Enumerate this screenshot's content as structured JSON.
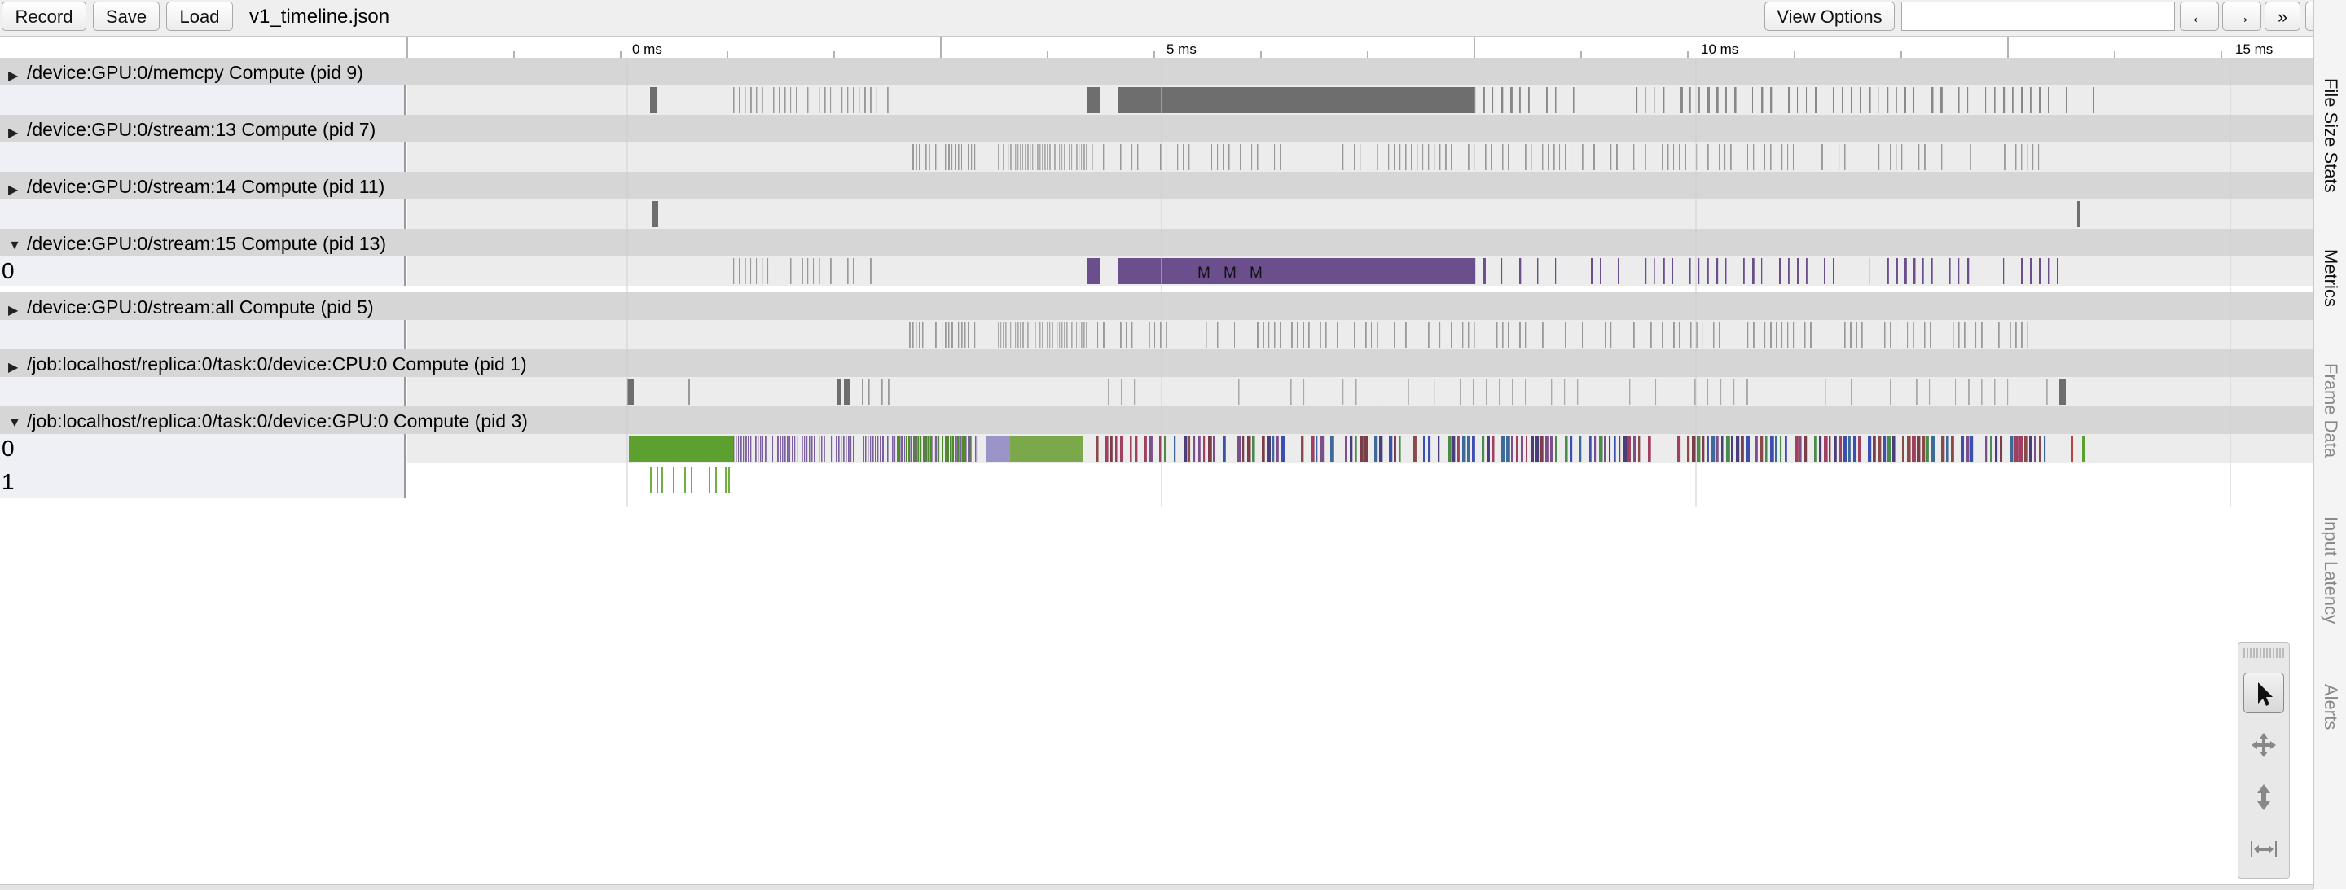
{
  "toolbar": {
    "record_label": "Record",
    "save_label": "Save",
    "load_label": "Load",
    "filename": "v1_timeline.json",
    "view_options_label": "View Options",
    "search_value": "",
    "prev_label": "←",
    "next_label": "→",
    "expand_label": "»",
    "help_label": "?"
  },
  "ruler": {
    "ticks": [
      "0 ms",
      "5 ms",
      "10 ms",
      "15 ms"
    ]
  },
  "processes": [
    {
      "title": "/device:GPU:0/memcpy Compute (pid 9)",
      "expanded": false,
      "rows": []
    },
    {
      "title": "/device:GPU:0/stream:13 Compute (pid 7)",
      "expanded": false,
      "rows": []
    },
    {
      "title": "/device:GPU:0/stream:14 Compute (pid 11)",
      "expanded": false,
      "rows": []
    },
    {
      "title": "/device:GPU:0/stream:15 Compute (pid 13)",
      "expanded": true,
      "rows": [
        "0"
      ]
    },
    {
      "title": "/device:GPU:0/stream:all Compute (pid 5)",
      "expanded": false,
      "rows": []
    },
    {
      "title": "/job:localhost/replica:0/task:0/device:CPU:0 Compute (pid 1)",
      "expanded": false,
      "rows": []
    },
    {
      "title": "/job:localhost/replica:0/task:0/device:GPU:0 Compute (pid 3)",
      "expanded": true,
      "rows": [
        "0",
        "1"
      ]
    }
  ],
  "slice_label": "M",
  "side_tabs": [
    "File Size Stats",
    "Metrics",
    "Frame Data",
    "Input Latency",
    "Alerts"
  ],
  "mouse_modes": [
    "select-mode",
    "pan-mode",
    "zoom-mode",
    "timing-mode"
  ],
  "colors": {
    "gray_slice": "#6e6e6e",
    "purple_slice": "#6b4f8c",
    "green_slice": "#5ca030"
  }
}
